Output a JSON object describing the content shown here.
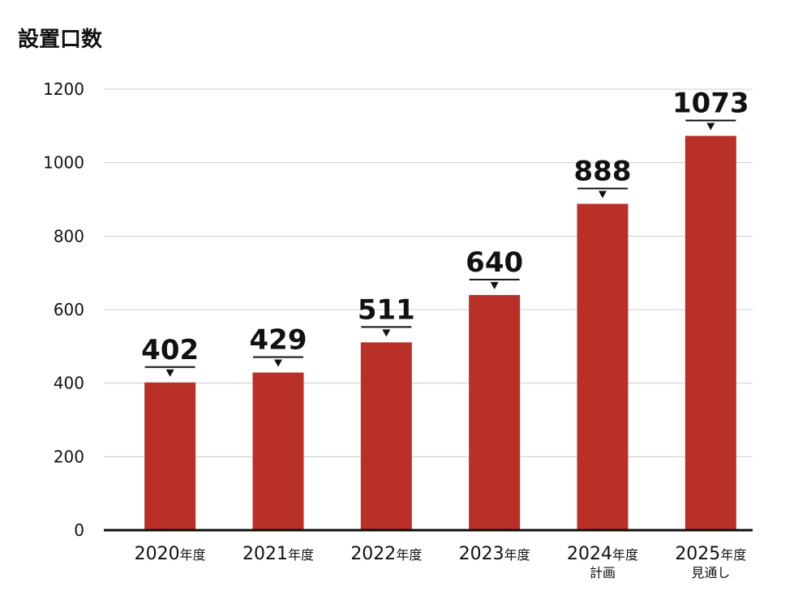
{
  "chart_data": {
    "type": "bar",
    "title": "設置口数",
    "categories": [
      "2020年度",
      "2021年度",
      "2022年度",
      "2023年度",
      "2024年度\n計画",
      "2025年度\n見通し"
    ],
    "values": [
      402,
      429,
      511,
      640,
      888,
      1073
    ],
    "ylim": [
      0,
      1200
    ],
    "yticks": [
      0,
      200,
      400,
      600,
      800,
      1000,
      1200
    ],
    "grid": true,
    "bar_color": "#b83028",
    "grid_color": "#cccccc",
    "text_color": "#111111"
  }
}
